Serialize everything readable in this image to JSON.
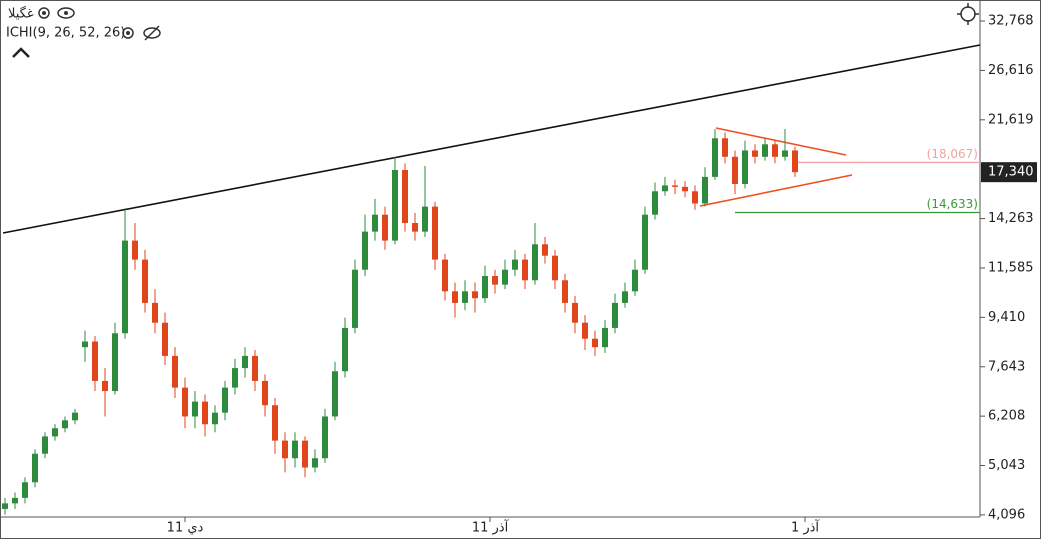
{
  "chart_data": {
    "type": "candlestick",
    "title": "غگیلا",
    "indicator": "ICHI(9, 26, 52, 26)",
    "log_scale": true,
    "ylim": [
      4060,
      35800
    ],
    "yticks": [
      {
        "value": 4096,
        "label": "4,096"
      },
      {
        "value": 5043,
        "label": "5,043"
      },
      {
        "value": 6208,
        "label": "6,208"
      },
      {
        "value": 7643,
        "label": "7,643"
      },
      {
        "value": 9410,
        "label": "9,410"
      },
      {
        "value": 11585,
        "label": "11,585"
      },
      {
        "value": 14263,
        "label": "14,263"
      },
      {
        "value": 21619,
        "label": "21,619"
      },
      {
        "value": 26616,
        "label": "26,616"
      },
      {
        "value": 32768,
        "label": "32,768"
      }
    ],
    "xticks": [
      {
        "value": 18,
        "label": "11 دي"
      },
      {
        "value": 48.5,
        "label": "11 آذر"
      },
      {
        "value": 80,
        "label": "1 آذر"
      }
    ],
    "up_color": "#2e8b3e",
    "down_color": "#e0461c",
    "last_price": {
      "value": 17340,
      "label": "17,340"
    },
    "levels": [
      {
        "value": 18067,
        "label": "(18,067)",
        "color": "#f4a3a0",
        "from": 79
      },
      {
        "value": 14633,
        "label": "(14,633)",
        "color": "#3a9a3a",
        "from": 73
      }
    ],
    "candles": [
      [
        4200,
        4400,
        4100,
        4300
      ],
      [
        4300,
        4500,
        4200,
        4400
      ],
      [
        4400,
        4800,
        4300,
        4700
      ],
      [
        4700,
        5400,
        4600,
        5300
      ],
      [
        5300,
        5800,
        5200,
        5700
      ],
      [
        5700,
        6000,
        5600,
        5900
      ],
      [
        5900,
        6200,
        5800,
        6100
      ],
      [
        6100,
        6400,
        6000,
        6300
      ],
      [
        8300,
        8900,
        7800,
        8500
      ],
      [
        8500,
        8700,
        6900,
        7200
      ],
      [
        7200,
        7600,
        6200,
        6900
      ],
      [
        6900,
        9200,
        6800,
        8800
      ],
      [
        8800,
        14800,
        8600,
        13000
      ],
      [
        13000,
        14000,
        11500,
        12000
      ],
      [
        12000,
        12500,
        9600,
        10000
      ],
      [
        10000,
        10600,
        8800,
        9200
      ],
      [
        9200,
        9600,
        7700,
        8000
      ],
      [
        8000,
        8300,
        6700,
        7000
      ],
      [
        7000,
        7300,
        5900,
        6200
      ],
      [
        6200,
        6900,
        5900,
        6600
      ],
      [
        6600,
        6800,
        5700,
        6000
      ],
      [
        6000,
        6500,
        5800,
        6300
      ],
      [
        6300,
        7200,
        6100,
        7000
      ],
      [
        7000,
        7900,
        6800,
        7600
      ],
      [
        7600,
        8300,
        7300,
        8000
      ],
      [
        8000,
        8200,
        6900,
        7200
      ],
      [
        7200,
        7400,
        6200,
        6500
      ],
      [
        6500,
        6700,
        5300,
        5600
      ],
      [
        5600,
        5800,
        4900,
        5200
      ],
      [
        5200,
        5800,
        5000,
        5600
      ],
      [
        5600,
        5700,
        4800,
        5000
      ],
      [
        5000,
        5400,
        4900,
        5200
      ],
      [
        5200,
        6400,
        5100,
        6200
      ],
      [
        6200,
        7800,
        6100,
        7500
      ],
      [
        7500,
        9400,
        7300,
        9000
      ],
      [
        9000,
        12000,
        8800,
        11500
      ],
      [
        11500,
        14500,
        11200,
        13500
      ],
      [
        13500,
        15500,
        13000,
        14500
      ],
      [
        14500,
        15000,
        12500,
        13000
      ],
      [
        13000,
        18500,
        12800,
        17500
      ],
      [
        17500,
        18000,
        13500,
        14000
      ],
      [
        14000,
        14600,
        13000,
        13500
      ],
      [
        13500,
        17800,
        13200,
        15000
      ],
      [
        15000,
        15300,
        11500,
        12000
      ],
      [
        12000,
        12300,
        10100,
        10500
      ],
      [
        10500,
        10900,
        9400,
        10000
      ],
      [
        10000,
        11000,
        9700,
        10500
      ],
      [
        10500,
        10900,
        9600,
        10200
      ],
      [
        10200,
        11700,
        10000,
        11200
      ],
      [
        11200,
        11500,
        10400,
        10800
      ],
      [
        10800,
        12000,
        10600,
        11500
      ],
      [
        11500,
        12500,
        11200,
        12000
      ],
      [
        12000,
        12300,
        10600,
        11000
      ],
      [
        11000,
        14000,
        10800,
        12800
      ],
      [
        12800,
        13200,
        11800,
        12200
      ],
      [
        12200,
        12500,
        10600,
        11000
      ],
      [
        11000,
        11300,
        9600,
        10000
      ],
      [
        10000,
        10300,
        8800,
        9200
      ],
      [
        9200,
        9500,
        8200,
        8600
      ],
      [
        8600,
        8900,
        8000,
        8300
      ],
      [
        8300,
        9300,
        8100,
        9000
      ],
      [
        9000,
        10400,
        8800,
        10000
      ],
      [
        10000,
        10900,
        9800,
        10500
      ],
      [
        10500,
        12000,
        10300,
        11500
      ],
      [
        11500,
        15000,
        11300,
        14500
      ],
      [
        14500,
        16600,
        14200,
        16000
      ],
      [
        16000,
        17000,
        15700,
        16400
      ],
      [
        16400,
        16800,
        15800,
        16300
      ],
      [
        16300,
        16700,
        15600,
        16000
      ],
      [
        16000,
        16400,
        14800,
        15200
      ],
      [
        15200,
        17700,
        15000,
        17000
      ],
      [
        17000,
        20800,
        16800,
        20000
      ],
      [
        20000,
        20500,
        18000,
        18500
      ],
      [
        18500,
        19000,
        15800,
        16500
      ],
      [
        16500,
        19800,
        16200,
        19000
      ],
      [
        19000,
        19500,
        18000,
        18500
      ],
      [
        18500,
        20000,
        18200,
        19500
      ],
      [
        19500,
        19900,
        18000,
        18500
      ],
      [
        18500,
        20800,
        18200,
        19000
      ],
      [
        19000,
        19300,
        17000,
        17340
      ]
    ]
  }
}
